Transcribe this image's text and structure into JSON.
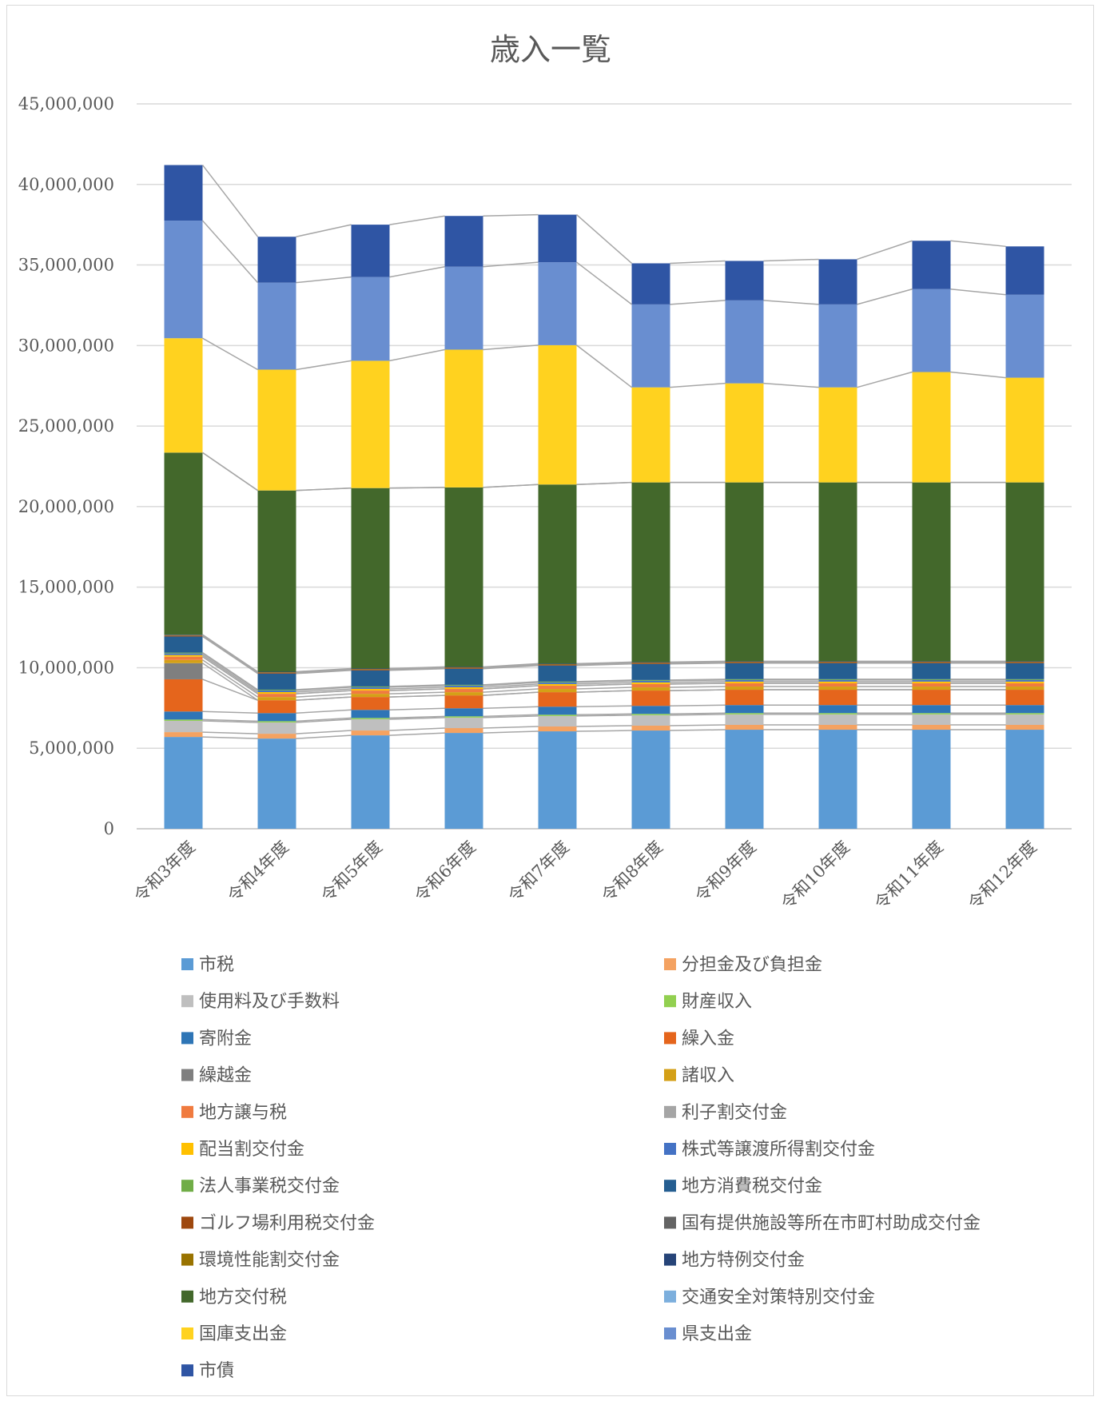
{
  "chart_data": {
    "type": "bar",
    "stacked": true,
    "title": "歳入一覧",
    "xlabel": "",
    "ylabel": "",
    "ylim": [
      0,
      45000000
    ],
    "yticks": [
      0,
      5000000,
      10000000,
      15000000,
      20000000,
      25000000,
      30000000,
      35000000,
      40000000,
      45000000
    ],
    "ytick_labels": [
      "0",
      "5,000,000",
      "10,000,000",
      "15,000,000",
      "20,000,000",
      "25,000,000",
      "30,000,000",
      "35,000,000",
      "40,000,000",
      "45,000,000"
    ],
    "grid": true,
    "series_lines": true,
    "legend_position": "bottom",
    "categories": [
      "令和3年度",
      "令和4年度",
      "令和5年度",
      "令和6年度",
      "令和7年度",
      "令和8年度",
      "令和9年度",
      "令和10年度",
      "令和11年度",
      "令和12年度"
    ],
    "series": [
      {
        "name": "市税",
        "color": "#5b9bd5",
        "values": [
          5700000,
          5600000,
          5800000,
          5950000,
          6050000,
          6100000,
          6150000,
          6150000,
          6150000,
          6150000
        ]
      },
      {
        "name": "分担金及び負担金",
        "color": "#f4a261",
        "values": [
          300000,
          300000,
          300000,
          300000,
          300000,
          300000,
          300000,
          300000,
          300000,
          300000
        ]
      },
      {
        "name": "使用料及び手数料",
        "color": "#bfbfbf",
        "values": [
          700000,
          700000,
          700000,
          650000,
          650000,
          650000,
          650000,
          650000,
          650000,
          650000
        ]
      },
      {
        "name": "財産収入",
        "color": "#92d050",
        "values": [
          80000,
          80000,
          80000,
          80000,
          80000,
          80000,
          80000,
          80000,
          80000,
          80000
        ]
      },
      {
        "name": "寄附金",
        "color": "#2e75b6",
        "values": [
          500000,
          500000,
          500000,
          500000,
          500000,
          500000,
          500000,
          500000,
          500000,
          500000
        ]
      },
      {
        "name": "繰入金",
        "color": "#e5651c",
        "values": [
          2000000,
          800000,
          800000,
          800000,
          900000,
          950000,
          950000,
          950000,
          950000,
          950000
        ]
      },
      {
        "name": "繰越金",
        "color": "#7f7f7f",
        "values": [
          1000000,
          0,
          0,
          0,
          0,
          0,
          0,
          0,
          0,
          0
        ]
      },
      {
        "name": "諸収入",
        "color": "#d4a017",
        "values": [
          200000,
          200000,
          200000,
          200000,
          200000,
          200000,
          200000,
          200000,
          200000,
          200000
        ]
      },
      {
        "name": "地方譲与税",
        "color": "#f07b3f",
        "values": [
          200000,
          200000,
          200000,
          200000,
          200000,
          200000,
          200000,
          200000,
          200000,
          200000
        ]
      },
      {
        "name": "利子割交付金",
        "color": "#a5a5a5",
        "values": [
          5000,
          5000,
          5000,
          5000,
          5000,
          5000,
          5000,
          5000,
          5000,
          5000
        ]
      },
      {
        "name": "配当割交付金",
        "color": "#ffc000",
        "values": [
          100000,
          100000,
          100000,
          100000,
          100000,
          100000,
          100000,
          100000,
          100000,
          100000
        ]
      },
      {
        "name": "株式等譲渡所得割交付金",
        "color": "#4472c4",
        "values": [
          100000,
          100000,
          100000,
          100000,
          100000,
          100000,
          100000,
          100000,
          100000,
          100000
        ]
      },
      {
        "name": "法人事業税交付金",
        "color": "#70ad47",
        "values": [
          50000,
          50000,
          50000,
          50000,
          50000,
          50000,
          50000,
          50000,
          50000,
          50000
        ]
      },
      {
        "name": "地方消費税交付金",
        "color": "#255e91",
        "values": [
          1000000,
          1000000,
          1000000,
          1000000,
          1000000,
          1000000,
          1000000,
          1000000,
          1000000,
          1000000
        ]
      },
      {
        "name": "ゴルフ場利用税交付金",
        "color": "#9e480e",
        "values": [
          60000,
          60000,
          60000,
          60000,
          60000,
          60000,
          60000,
          60000,
          60000,
          60000
        ]
      },
      {
        "name": "国有提供施設等所在市町村助成交付金",
        "color": "#636363",
        "values": [
          5000,
          5000,
          5000,
          5000,
          5000,
          5000,
          5000,
          5000,
          5000,
          5000
        ]
      },
      {
        "name": "環境性能割交付金",
        "color": "#997300",
        "values": [
          20000,
          20000,
          20000,
          20000,
          20000,
          20000,
          20000,
          20000,
          20000,
          20000
        ]
      },
      {
        "name": "地方特例交付金",
        "color": "#264478",
        "values": [
          30000,
          30000,
          30000,
          30000,
          30000,
          30000,
          30000,
          30000,
          30000,
          30000
        ]
      },
      {
        "name": "地方交付税",
        "color": "#43682b",
        "values": [
          11300000,
          11250000,
          11200000,
          11140000,
          11120000,
          11150000,
          11100000,
          11100000,
          11100000,
          11100000
        ]
      },
      {
        "name": "交通安全対策特別交付金",
        "color": "#7cafdd",
        "values": [
          3000,
          3000,
          3000,
          3000,
          3000,
          3000,
          3000,
          3000,
          3000,
          3000
        ]
      },
      {
        "name": "国庫支出金",
        "color": "#ffd21f",
        "values": [
          7100000,
          7500000,
          7900000,
          8550000,
          8650000,
          5900000,
          6150000,
          5900000,
          6850000,
          6500000
        ]
      },
      {
        "name": "県支出金",
        "color": "#698ed0",
        "values": [
          7300000,
          5400000,
          5200000,
          5150000,
          5150000,
          5150000,
          5150000,
          5150000,
          5150000,
          5150000
        ]
      },
      {
        "name": "市債",
        "color": "#2f55a4",
        "values": [
          3450000,
          2850000,
          3250000,
          3150000,
          2950000,
          2550000,
          2450000,
          2800000,
          3000000,
          3000000
        ]
      }
    ]
  }
}
